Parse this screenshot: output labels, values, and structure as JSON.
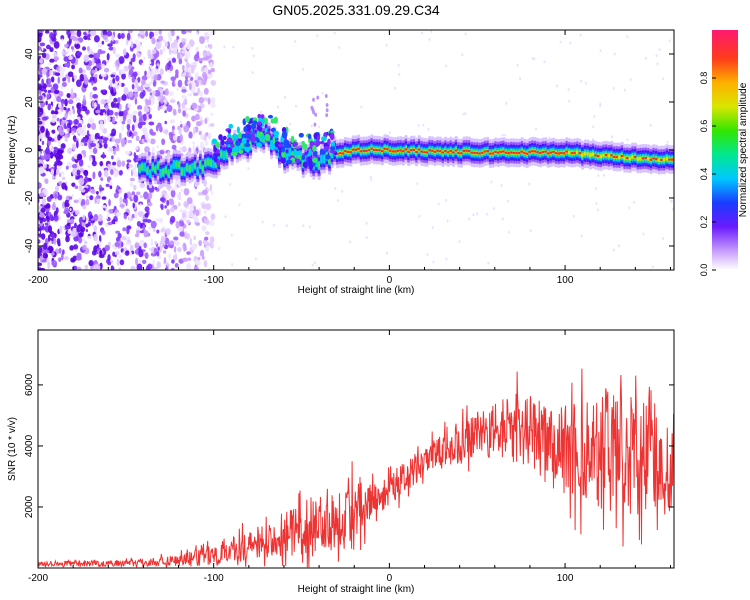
{
  "title": "GN05.2025.331.09.29.C34",
  "chart_data": [
    {
      "type": "heatmap",
      "xlabel": "Height of straight line (km)",
      "ylabel": "Frequency (Hz)",
      "xlim": [
        -200,
        162
      ],
      "ylim": [
        -50,
        50
      ],
      "xticks": [
        -200,
        -100,
        0,
        100
      ],
      "yticks": [
        -40,
        -20,
        0,
        20,
        40
      ],
      "colorbar": {
        "label": "Normalized spectral amplitude",
        "range": [
          0,
          1
        ],
        "ticks": [
          0.0,
          0.2,
          0.4,
          0.6,
          0.8
        ]
      },
      "ridge": [
        {
          "x": -142,
          "y": -8
        },
        {
          "x": -125,
          "y": -8
        },
        {
          "x": -110,
          "y": -7
        },
        {
          "x": -100,
          "y": -5
        },
        {
          "x": -90,
          "y": 0
        },
        {
          "x": -80,
          "y": 3
        },
        {
          "x": -70,
          "y": 6
        },
        {
          "x": -60,
          "y": -2
        },
        {
          "x": -50,
          "y": -4
        },
        {
          "x": -40,
          "y": -5
        },
        {
          "x": -30,
          "y": -2
        },
        {
          "x": -20,
          "y": 0
        },
        {
          "x": 0,
          "y": 0
        },
        {
          "x": 50,
          "y": -1
        },
        {
          "x": 100,
          "y": -1
        },
        {
          "x": 130,
          "y": -3
        },
        {
          "x": 162,
          "y": -4
        }
      ]
    },
    {
      "type": "line",
      "xlabel": "Height of straight line (km)",
      "ylabel": "SNR (10 * v/v)",
      "xlim": [
        -200,
        162
      ],
      "ylim": [
        0,
        7800
      ],
      "xticks": [
        -200,
        -100,
        0,
        100
      ],
      "yticks": [
        2000,
        4000,
        6000
      ],
      "series": [
        {
          "name": "SNR",
          "color": "#ee3333",
          "envelope": [
            {
              "x": -200,
              "base": 150,
              "amp": 120
            },
            {
              "x": -150,
              "base": 150,
              "amp": 140
            },
            {
              "x": -120,
              "base": 250,
              "amp": 250
            },
            {
              "x": -100,
              "base": 450,
              "amp": 450
            },
            {
              "x": -80,
              "base": 700,
              "amp": 700
            },
            {
              "x": -60,
              "base": 1100,
              "amp": 1000
            },
            {
              "x": -40,
              "base": 1500,
              "amp": 1300
            },
            {
              "x": -25,
              "base": 1800,
              "amp": 1600
            },
            {
              "x": -15,
              "base": 2200,
              "amp": 1200
            },
            {
              "x": 0,
              "base": 2600,
              "amp": 700
            },
            {
              "x": 15,
              "base": 3200,
              "amp": 700
            },
            {
              "x": 30,
              "base": 3800,
              "amp": 800
            },
            {
              "x": 50,
              "base": 4300,
              "amp": 1000
            },
            {
              "x": 70,
              "base": 4700,
              "amp": 1400
            },
            {
              "x": 90,
              "base": 4200,
              "amp": 1800
            },
            {
              "x": 110,
              "base": 3800,
              "amp": 2200
            },
            {
              "x": 125,
              "base": 4200,
              "amp": 2600
            },
            {
              "x": 140,
              "base": 3700,
              "amp": 2600
            },
            {
              "x": 162,
              "base": 3500,
              "amp": 2200
            }
          ]
        }
      ]
    }
  ]
}
